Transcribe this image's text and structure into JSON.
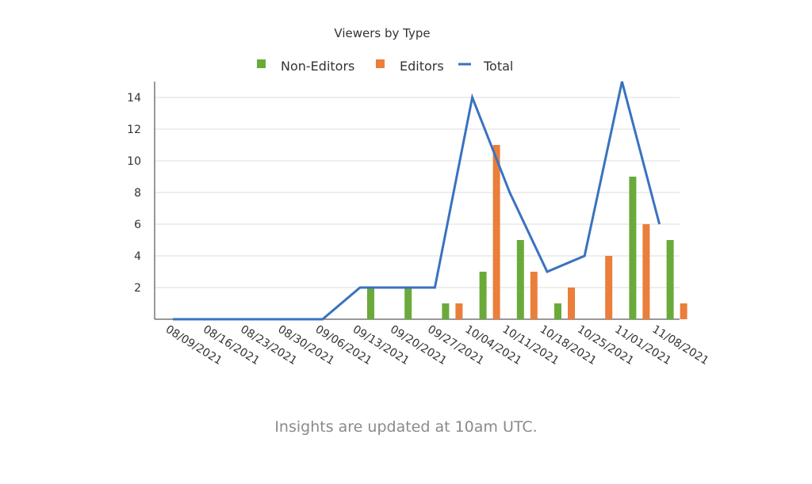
{
  "chart_data": {
    "type": "bar",
    "title": "Viewers by Type",
    "categories": [
      "08/09/2021",
      "08/16/2021",
      "08/23/2021",
      "08/30/2021",
      "09/06/2021",
      "09/13/2021",
      "09/20/2021",
      "09/27/2021",
      "10/04/2021",
      "10/11/2021",
      "10/18/2021",
      "10/25/2021",
      "11/01/2021",
      "11/08/2021"
    ],
    "series": [
      {
        "name": "Non-Editors",
        "kind": "bar",
        "color": "#6aaa3a",
        "values": [
          0,
          0,
          0,
          0,
          0,
          2,
          2,
          1,
          3,
          5,
          1,
          0,
          9,
          5
        ]
      },
      {
        "name": "Editors",
        "kind": "bar",
        "color": "#ea7e3b",
        "values": [
          0,
          0,
          0,
          0,
          0,
          0,
          0,
          1,
          11,
          3,
          2,
          4,
          6,
          1
        ]
      },
      {
        "name": "Total",
        "kind": "line",
        "color": "#3a72c0",
        "values": [
          0,
          0,
          0,
          0,
          0,
          2,
          2,
          2,
          14,
          8,
          3,
          4,
          15,
          6
        ]
      }
    ],
    "y_ticks": [
      2,
      4,
      6,
      8,
      10,
      12,
      14
    ],
    "ylim": [
      0,
      15
    ],
    "grid": true,
    "legend_position": "top"
  },
  "footer_note": "Insights are updated at 10am UTC."
}
